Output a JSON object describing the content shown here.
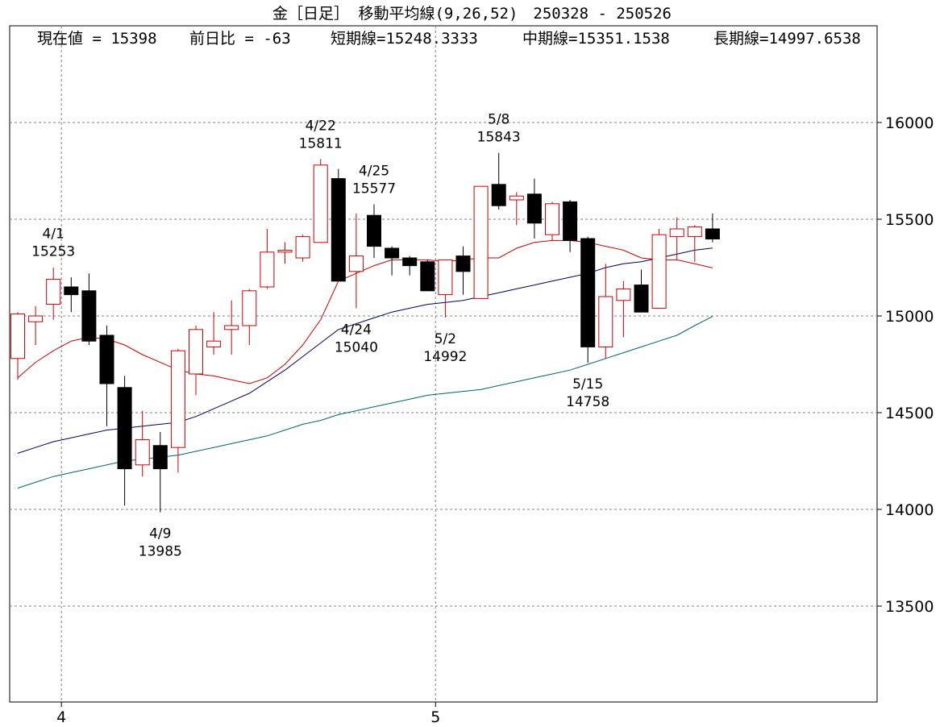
{
  "title": "金［日足］ 移動平均線(9,26,52)　250328 - 250526",
  "info": {
    "current": "現在値 = 15398",
    "change": "前日比 = -63",
    "short_ma": "短期線=15248.3333",
    "mid_ma": "中期線=15351.1538",
    "long_ma": "長期線=14997.6538"
  },
  "colors": {
    "up": "#cc0000",
    "down": "#000000",
    "short_ma": "#cc0000",
    "mid_ma": "#000066",
    "long_ma": "#006666",
    "grid": "#808080"
  },
  "chart_data": {
    "type": "candlestick",
    "ylim": [
      13000,
      16500
    ],
    "y_ticks": [
      13500,
      14000,
      14500,
      15000,
      15500,
      16000
    ],
    "x_ticks": [
      {
        "index": 2,
        "label": "4"
      },
      {
        "index": 23,
        "label": "5"
      }
    ],
    "grid": true,
    "candles": [
      {
        "o": 14780,
        "h": 15020,
        "l": 14670,
        "c": 15010
      },
      {
        "o": 14970,
        "h": 15050,
        "l": 14850,
        "c": 15000
      },
      {
        "o": 15060,
        "h": 15250,
        "l": 14980,
        "c": 15190
      },
      {
        "o": 15150,
        "h": 15200,
        "l": 15020,
        "c": 15110
      },
      {
        "o": 15130,
        "h": 15220,
        "l": 14850,
        "c": 14870
      },
      {
        "o": 14900,
        "h": 14950,
        "l": 14430,
        "c": 14650
      },
      {
        "o": 14630,
        "h": 14690,
        "l": 14020,
        "c": 14210
      },
      {
        "o": 14230,
        "h": 14510,
        "l": 14170,
        "c": 14360
      },
      {
        "o": 14330,
        "h": 14400,
        "l": 13985,
        "c": 14210
      },
      {
        "o": 14320,
        "h": 14830,
        "l": 14190,
        "c": 14820
      },
      {
        "o": 14700,
        "h": 14950,
        "l": 14590,
        "c": 14930
      },
      {
        "o": 14840,
        "h": 15020,
        "l": 14800,
        "c": 14870
      },
      {
        "o": 14930,
        "h": 15080,
        "l": 14800,
        "c": 14950
      },
      {
        "o": 14950,
        "h": 15140,
        "l": 14850,
        "c": 15130
      },
      {
        "o": 15150,
        "h": 15450,
        "l": 15140,
        "c": 15330
      },
      {
        "o": 15330,
        "h": 15380,
        "l": 15270,
        "c": 15340
      },
      {
        "o": 15300,
        "h": 15420,
        "l": 15280,
        "c": 15410
      },
      {
        "o": 15380,
        "h": 15811,
        "l": 15380,
        "c": 15780
      },
      {
        "o": 15710,
        "h": 15760,
        "l": 15180,
        "c": 15180
      },
      {
        "o": 15230,
        "h": 15530,
        "l": 15040,
        "c": 15310
      },
      {
        "o": 15520,
        "h": 15577,
        "l": 15300,
        "c": 15360
      },
      {
        "o": 15350,
        "h": 15360,
        "l": 15210,
        "c": 15300
      },
      {
        "o": 15300,
        "h": 15310,
        "l": 15210,
        "c": 15260
      },
      {
        "o": 15280,
        "h": 15290,
        "l": 15130,
        "c": 15130
      },
      {
        "o": 15110,
        "h": 15290,
        "l": 14992,
        "c": 15290
      },
      {
        "o": 15310,
        "h": 15360,
        "l": 15110,
        "c": 15230
      },
      {
        "o": 15090,
        "h": 15670,
        "l": 15090,
        "c": 15670
      },
      {
        "o": 15680,
        "h": 15843,
        "l": 15550,
        "c": 15570
      },
      {
        "o": 15600,
        "h": 15640,
        "l": 15470,
        "c": 15620
      },
      {
        "o": 15630,
        "h": 15710,
        "l": 15400,
        "c": 15480
      },
      {
        "o": 15420,
        "h": 15590,
        "l": 15390,
        "c": 15580
      },
      {
        "o": 15590,
        "h": 15600,
        "l": 15330,
        "c": 15390
      },
      {
        "o": 15400,
        "h": 15410,
        "l": 14758,
        "c": 14840
      },
      {
        "o": 14840,
        "h": 15270,
        "l": 14780,
        "c": 15100
      },
      {
        "o": 15080,
        "h": 15180,
        "l": 14890,
        "c": 15140
      },
      {
        "o": 15160,
        "h": 15240,
        "l": 15020,
        "c": 15020
      },
      {
        "o": 15040,
        "h": 15450,
        "l": 15040,
        "c": 15420
      },
      {
        "o": 15410,
        "h": 15510,
        "l": 15290,
        "c": 15450
      },
      {
        "o": 15410,
        "h": 15470,
        "l": 15280,
        "c": 15460
      },
      {
        "o": 15450,
        "h": 15530,
        "l": 15380,
        "c": 15398
      }
    ],
    "series": [
      {
        "name": "短期線",
        "values": [
          14680,
          14760,
          14820,
          14870,
          14890,
          14880,
          14850,
          14800,
          14760,
          14720,
          14700,
          14690,
          14670,
          14650,
          14680,
          14750,
          14850,
          14980,
          15180,
          15220,
          15260,
          15290,
          15290,
          15290,
          15280,
          15290,
          15300,
          15300,
          15350,
          15380,
          15390,
          15390,
          15380,
          15360,
          15340,
          15300,
          15290,
          15290,
          15270,
          15248.3
        ]
      },
      {
        "name": "中期線",
        "values": [
          14290,
          14320,
          14350,
          14370,
          14390,
          14410,
          14420,
          14430,
          14440,
          14450,
          14480,
          14520,
          14560,
          14600,
          14660,
          14720,
          14790,
          14860,
          14930,
          14960,
          14990,
          15020,
          15040,
          15060,
          15070,
          15080,
          15100,
          15120,
          15140,
          15160,
          15180,
          15200,
          15220,
          15250,
          15270,
          15280,
          15300,
          15320,
          15340,
          15351.2
        ]
      },
      {
        "name": "長期線",
        "values": [
          14110,
          14140,
          14170,
          14190,
          14210,
          14230,
          14250,
          14260,
          14270,
          14280,
          14300,
          14320,
          14340,
          14360,
          14380,
          14410,
          14440,
          14460,
          14490,
          14510,
          14530,
          14550,
          14570,
          14590,
          14600,
          14610,
          14620,
          14640,
          14660,
          14680,
          14700,
          14720,
          14750,
          14780,
          14810,
          14840,
          14870,
          14900,
          14950,
          14997.7
        ]
      }
    ],
    "annotations": [
      {
        "index": 2,
        "label": "4/1",
        "value": "15253",
        "pos": "above",
        "price": 15253
      },
      {
        "index": 8,
        "label": "4/9",
        "value": "13985",
        "pos": "below",
        "price": 13985
      },
      {
        "index": 17,
        "label": "4/22",
        "value": "15811",
        "pos": "above",
        "price": 15811
      },
      {
        "index": 19,
        "label": "4/24",
        "value": "15040",
        "pos": "below",
        "price": 15040
      },
      {
        "index": 20,
        "label": "4/25",
        "value": "15577",
        "pos": "above",
        "price": 15577
      },
      {
        "index": 24,
        "label": "5/2",
        "value": "14992",
        "pos": "below",
        "price": 14992
      },
      {
        "index": 27,
        "label": "5/8",
        "value": "15843",
        "pos": "above",
        "price": 15843
      },
      {
        "index": 32,
        "label": "5/15",
        "value": "14758",
        "pos": "below",
        "price": 14758
      }
    ]
  }
}
